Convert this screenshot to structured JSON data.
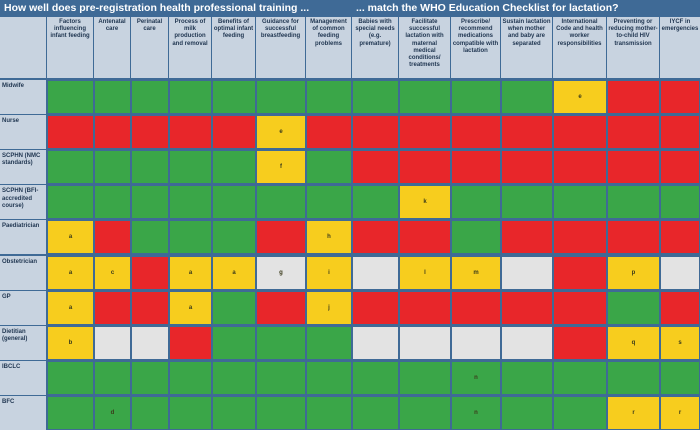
{
  "chart_data": {
    "type": "heatmap",
    "title_left": "How well does pre-registration health professional training ...",
    "title_right": "... match the WHO Education Checklist for lactation?",
    "columns": [
      "Factors influencing infant feeding",
      "Antenatal care",
      "Perinatal care",
      "Process of milk production and removal",
      "Benefits of optimal infant feeding",
      "Guidance for successful breastfeeding",
      "Management of common feeding problems",
      "Babies with special needs (e.g. premature)",
      "Facilitate successful lactation with maternal medical conditions/ treatments",
      "Prescribe/ recommend medications compatible with lactation",
      "Sustain lactation when mother and baby are separated",
      "International Code and health worker responsibilities",
      "Preventing or reducing mother-to-child HIV transmission",
      "IYCF in emergencies"
    ],
    "rows": [
      {
        "name": "Midwife",
        "ratings": [
          "G",
          "G",
          "G",
          "G",
          "G",
          "G",
          "G",
          "G",
          "G",
          "G",
          "G",
          "Y",
          "R",
          "R"
        ],
        "notes": [
          "",
          "",
          "",
          "",
          "",
          "",
          "",
          "",
          "",
          "",
          "",
          "e",
          "",
          ""
        ]
      },
      {
        "name": "Nurse",
        "ratings": [
          "R",
          "R",
          "R",
          "R",
          "R",
          "Y",
          "R",
          "R",
          "R",
          "R",
          "R",
          "R",
          "R",
          "R"
        ],
        "notes": [
          "",
          "",
          "",
          "",
          "",
          "e",
          "",
          "",
          "",
          "",
          "",
          "",
          "",
          ""
        ]
      },
      {
        "name": "SCPHN (NMC standards)",
        "ratings": [
          "G",
          "G",
          "G",
          "G",
          "G",
          "Y",
          "G",
          "R",
          "R",
          "R",
          "R",
          "R",
          "R",
          "R"
        ],
        "notes": [
          "",
          "",
          "",
          "",
          "",
          "f",
          "",
          "",
          "",
          "",
          "",
          "",
          "",
          ""
        ]
      },
      {
        "name": "SCPHN (BFI-accredited course)",
        "ratings": [
          "G",
          "G",
          "G",
          "G",
          "G",
          "G",
          "G",
          "G",
          "Y",
          "G",
          "G",
          "G",
          "G",
          "G"
        ],
        "notes": [
          "",
          "",
          "",
          "",
          "",
          "",
          "",
          "",
          "k",
          "",
          "",
          "",
          "",
          ""
        ]
      },
      {
        "name": "Paediatrician",
        "ratings": [
          "Y",
          "R",
          "G",
          "G",
          "G",
          "R",
          "Y",
          "R",
          "R",
          "G",
          "R",
          "R",
          "R",
          "R"
        ],
        "notes": [
          "a",
          "",
          "",
          "",
          "",
          "",
          "h",
          "",
          "",
          "",
          "",
          "",
          "",
          ""
        ]
      },
      {
        "name": "Obstetrician",
        "ratings": [
          "Y",
          "Y",
          "R",
          "Y",
          "Y",
          "W",
          "Y",
          "W",
          "Y",
          "Y",
          "W",
          "R",
          "Y",
          "W"
        ],
        "notes": [
          "a",
          "c",
          "",
          "a",
          "a",
          "g",
          "i",
          "",
          "l",
          "m",
          "",
          "",
          "p",
          ""
        ]
      },
      {
        "name": "GP",
        "ratings": [
          "Y",
          "R",
          "R",
          "Y",
          "G",
          "R",
          "Y",
          "R",
          "R",
          "R",
          "R",
          "R",
          "G",
          "R"
        ],
        "notes": [
          "a",
          "",
          "",
          "a",
          "",
          "",
          "j",
          "",
          "",
          "",
          "",
          "",
          "",
          ""
        ]
      },
      {
        "name": "Dietitian (general)",
        "ratings": [
          "Y",
          "W",
          "W",
          "R",
          "G",
          "G",
          "G",
          "W",
          "W",
          "W",
          "W",
          "R",
          "Y",
          "Y"
        ],
        "notes": [
          "b",
          "",
          "",
          "",
          "",
          "",
          "",
          "",
          "",
          "",
          "",
          "",
          "q",
          "s"
        ]
      },
      {
        "name": "IBCLC",
        "ratings": [
          "G",
          "G",
          "G",
          "G",
          "G",
          "G",
          "G",
          "G",
          "G",
          "G",
          "G",
          "G",
          "G",
          "G"
        ],
        "notes": [
          "",
          "",
          "",
          "",
          "",
          "",
          "",
          "",
          "",
          "n",
          "",
          "",
          "",
          ""
        ]
      },
      {
        "name": "BFC",
        "ratings": [
          "G",
          "G",
          "G",
          "G",
          "G",
          "G",
          "G",
          "G",
          "G",
          "G",
          "G",
          "G",
          "Y",
          "Y"
        ],
        "notes": [
          "",
          "d",
          "",
          "",
          "",
          "",
          "",
          "",
          "",
          "n",
          "",
          "",
          "r",
          "r"
        ]
      }
    ],
    "rating_colors": {
      "G": "#3aa648",
      "R": "#e8262a",
      "Y": "#f7cd1e",
      "W": "#e3e3e3"
    }
  }
}
